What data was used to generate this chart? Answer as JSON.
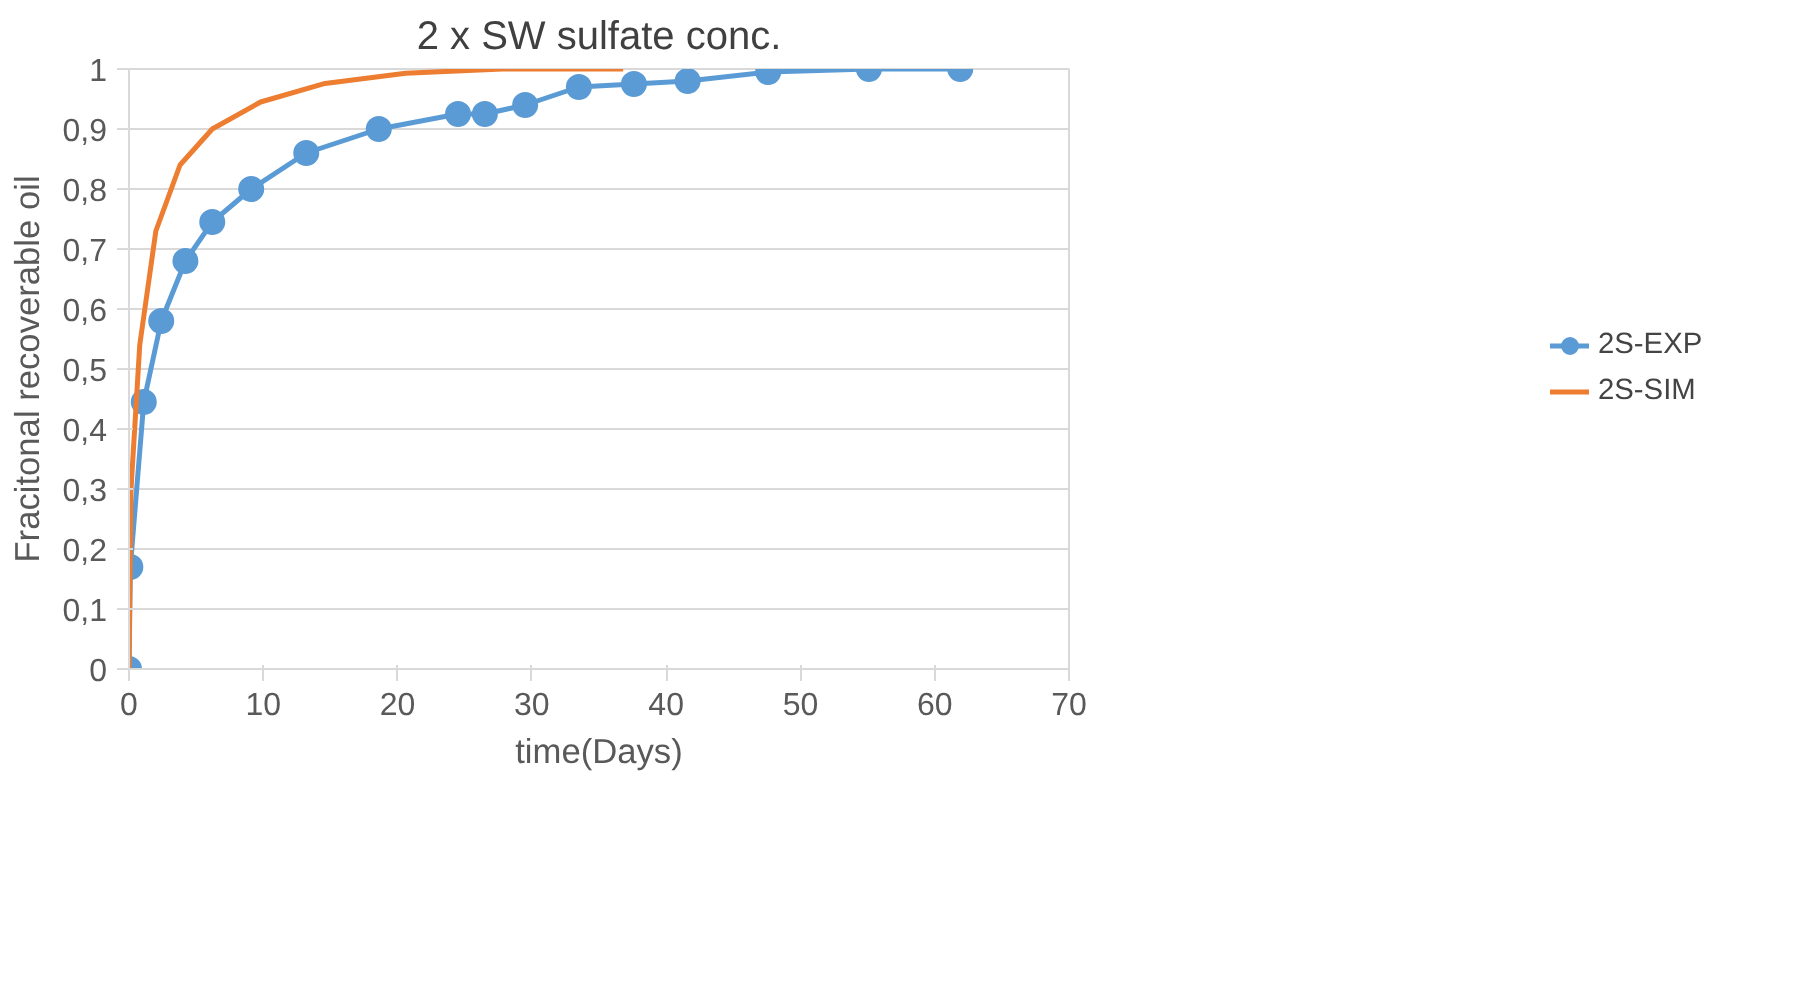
{
  "chart_data": {
    "type": "line",
    "title": "2 x SW sulfate conc.",
    "xlabel": "time(Days)",
    "ylabel": "Fracitonal recoverable oil",
    "xlim": [
      0,
      70
    ],
    "xticks": [
      0,
      10,
      20,
      30,
      40,
      50,
      60,
      70
    ],
    "ylim": [
      0,
      1
    ],
    "yticks": [
      0,
      {
        "value": 0.1,
        "label": "0,1"
      },
      {
        "value": 0.2,
        "label": "0,2"
      },
      {
        "value": 0.3,
        "label": "0,3"
      },
      {
        "value": 0.4,
        "label": "0,4"
      },
      {
        "value": 0.5,
        "label": "0,5"
      },
      {
        "value": 0.6,
        "label": "0,6"
      },
      {
        "value": 0.7,
        "label": "0,7"
      },
      {
        "value": 0.8,
        "label": "0,8"
      },
      {
        "value": 0.9,
        "label": "0,9"
      },
      1
    ],
    "grid": "y",
    "legend": "right",
    "series": [
      {
        "name": "2S-EXP",
        "color": "#5b9bd5",
        "marker": "circle",
        "x": [
          0,
          0.1,
          1.1,
          2.4,
          4.2,
          6.2,
          9.1,
          13.2,
          18.6,
          24.5,
          26.5,
          29.5,
          33.5,
          37.6,
          41.6,
          47.6,
          55.1,
          61.9
        ],
        "values": [
          0,
          0.17,
          0.445,
          0.58,
          0.68,
          0.745,
          0.8,
          0.86,
          0.9,
          0.925,
          0.925,
          0.94,
          0.97,
          0.975,
          0.98,
          0.995,
          1.0,
          1.0
        ]
      },
      {
        "name": "2S-SIM",
        "color": "#ed7d31",
        "marker": "none",
        "x": [
          0,
          0.15,
          0.8,
          2.0,
          3.8,
          6.2,
          9.8,
          14.6,
          20.6,
          27.8,
          36.8
        ],
        "values": [
          0,
          0.3,
          0.54,
          0.73,
          0.84,
          0.9,
          0.945,
          0.976,
          0.993,
          1.0,
          1.0
        ]
      }
    ]
  }
}
